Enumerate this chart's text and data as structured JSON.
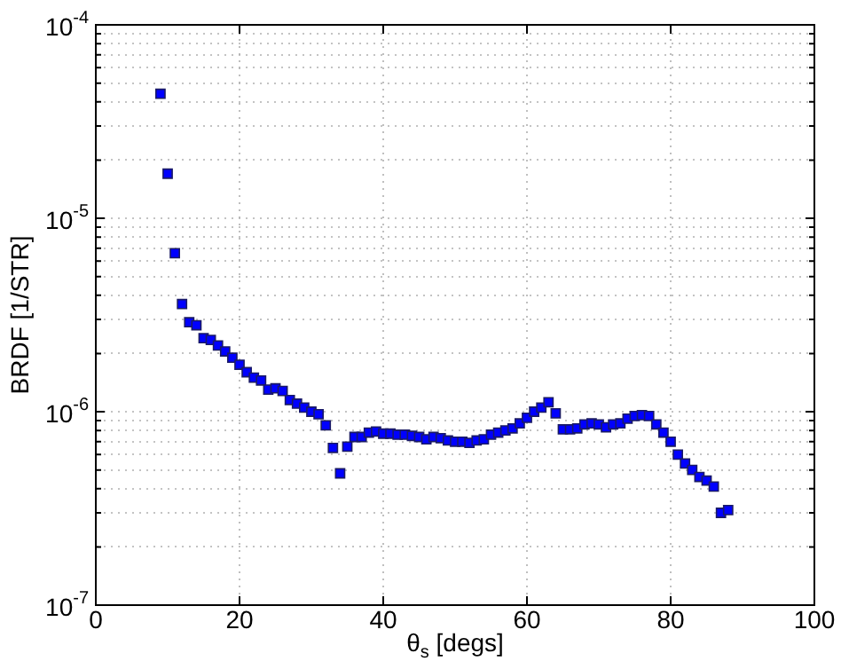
{
  "chart_data": {
    "type": "scatter",
    "xlabel": "θ$_{s}$ [degs]",
    "ylabel": "BRDF [1/STR]",
    "log": "y",
    "grid": true,
    "marker": "square",
    "legend": false,
    "xlim": [
      0,
      100
    ],
    "xticks": [
      0,
      20,
      40,
      60,
      80,
      100
    ],
    "ylim": [
      1e-07,
      0.0001
    ],
    "yticks": [
      {
        "value": 1e-07,
        "label": "10$^{-7}$"
      },
      {
        "value": 2e-07,
        "label": null
      },
      {
        "value": 3e-07,
        "label": null
      },
      {
        "value": 4e-07,
        "label": null
      },
      {
        "value": 5e-07,
        "label": null
      },
      {
        "value": 6e-07,
        "label": null
      },
      {
        "value": 7e-07,
        "label": null
      },
      {
        "value": 8e-07,
        "label": null
      },
      {
        "value": 9e-07,
        "label": null
      },
      {
        "value": 1e-06,
        "label": "10$^{-6}$"
      },
      {
        "value": 2e-06,
        "label": null
      },
      {
        "value": 3e-06,
        "label": null
      },
      {
        "value": 4e-06,
        "label": null
      },
      {
        "value": 5e-06,
        "label": null
      },
      {
        "value": 6e-06,
        "label": null
      },
      {
        "value": 7e-06,
        "label": null
      },
      {
        "value": 8e-06,
        "label": null
      },
      {
        "value": 9e-06,
        "label": null
      },
      {
        "value": 1e-05,
        "label": "10$^{-5}$"
      },
      {
        "value": 2e-05,
        "label": null
      },
      {
        "value": 3e-05,
        "label": null
      },
      {
        "value": 4e-05,
        "label": null
      },
      {
        "value": 5e-05,
        "label": null
      },
      {
        "value": 6e-05,
        "label": null
      },
      {
        "value": 7e-05,
        "label": null
      },
      {
        "value": 8e-05,
        "label": null
      },
      {
        "value": 9e-05,
        "label": null
      },
      {
        "value": 0.0001,
        "label": "10$^{-4}$"
      }
    ],
    "series": [
      {
        "color": "#0000ff",
        "x": [
          9,
          10,
          11,
          12,
          13,
          14,
          15,
          16,
          17,
          18,
          19,
          20,
          21,
          22,
          23,
          24,
          25,
          26,
          27,
          28,
          29,
          30,
          31,
          32,
          33,
          34,
          35,
          36,
          37,
          38,
          39,
          40,
          41,
          42,
          43,
          44,
          45,
          46,
          47,
          48,
          49,
          50,
          51,
          52,
          53,
          54,
          55,
          56,
          57,
          58,
          59,
          60,
          61,
          62,
          63,
          64,
          65,
          66,
          67,
          68,
          69,
          70,
          71,
          72,
          73,
          74,
          75,
          76,
          77,
          78,
          79,
          80,
          81,
          82,
          83,
          84,
          85,
          86,
          87,
          88
        ],
        "values": [
          4.4e-05,
          1.7e-05,
          6.6e-06,
          3.6e-06,
          2.9e-06,
          2.8e-06,
          2.4e-06,
          2.35e-06,
          2.2e-06,
          2.05e-06,
          1.9e-06,
          1.75e-06,
          1.6e-06,
          1.5e-06,
          1.45e-06,
          1.3e-06,
          1.32e-06,
          1.28e-06,
          1.15e-06,
          1.1e-06,
          1.05e-06,
          1e-06,
          9.7e-07,
          8.5e-07,
          6.5e-07,
          4.8e-07,
          6.6e-07,
          7.4e-07,
          7.4e-07,
          7.8e-07,
          7.9e-07,
          7.7e-07,
          7.7e-07,
          7.6e-07,
          7.6e-07,
          7.5e-07,
          7.4e-07,
          7.2e-07,
          7.4e-07,
          7.3e-07,
          7.1e-07,
          7e-07,
          7e-07,
          6.9e-07,
          7.1e-07,
          7.2e-07,
          7.6e-07,
          7.8e-07,
          8e-07,
          8.2e-07,
          8.7e-07,
          9.3e-07,
          1e-06,
          1.05e-06,
          1.12e-06,
          9.8e-07,
          8.1e-07,
          8.1e-07,
          8.2e-07,
          8.6e-07,
          8.7e-07,
          8.6e-07,
          8.3e-07,
          8.6e-07,
          8.7e-07,
          9.2e-07,
          9.5e-07,
          9.6e-07,
          9.5e-07,
          8.6e-07,
          7.8e-07,
          7e-07,
          6e-07,
          5.4e-07,
          5e-07,
          4.6e-07,
          4.4e-07,
          4.1e-07,
          3e-07,
          3.1e-07
        ]
      }
    ]
  }
}
